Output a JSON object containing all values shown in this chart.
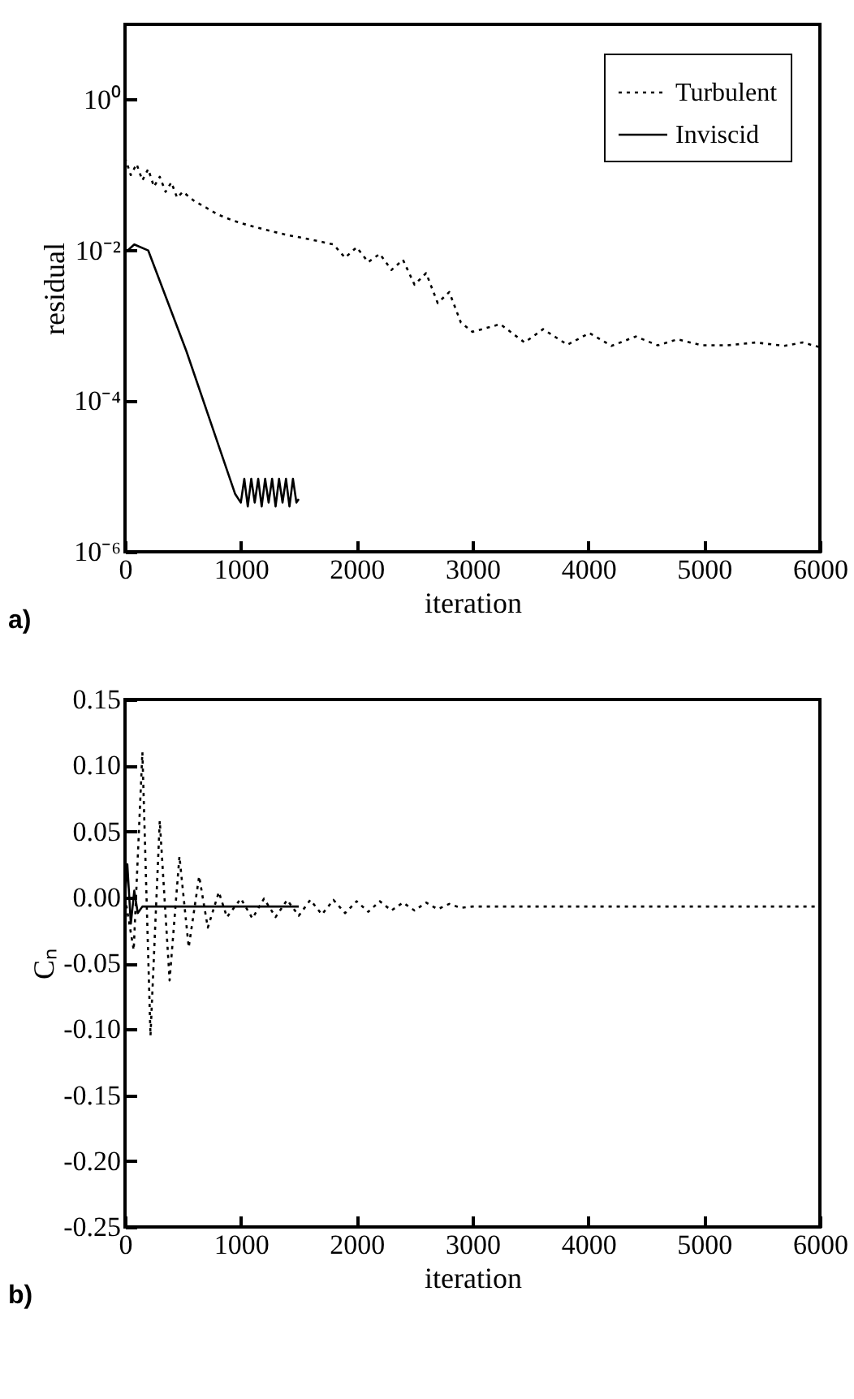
{
  "chart_data": [
    {
      "type": "line",
      "xlabel": "iteration",
      "ylabel": "residual",
      "log": "y",
      "xlim": [
        0,
        6000
      ],
      "xticks": [
        0,
        1000,
        2000,
        3000,
        4000,
        5000,
        6000
      ],
      "ylim": [
        1e-06,
        10
      ],
      "yticks": [
        {
          "value": 1,
          "label": "10⁰"
        },
        {
          "value": 0.01,
          "label": "10⁻²"
        },
        {
          "value": 0.0001,
          "label": "10⁻⁴"
        },
        {
          "value": 1e-06,
          "label": "10⁻⁶"
        }
      ],
      "grid": false,
      "legend": "top right",
      "marker": "none",
      "annotations": [
        "a)"
      ],
      "series": [
        {
          "name": "Turbulent",
          "color": "#000000",
          "line_style": "dotted",
          "x": [
            0,
            50,
            100,
            150,
            200,
            250,
            300,
            350,
            400,
            450,
            500,
            600,
            700,
            800,
            900,
            1000,
            1200,
            1400,
            1600,
            1800,
            1900,
            2000,
            2100,
            2200,
            2300,
            2400,
            2500,
            2600,
            2700,
            2800,
            2900,
            3000,
            3240,
            3450,
            3610,
            3820,
            4010,
            4200,
            4410,
            4600,
            4770,
            4980,
            5200,
            5450,
            5690,
            5850,
            6000
          ],
          "values": [
            0.17,
            0.1,
            0.14,
            0.085,
            0.12,
            0.07,
            0.095,
            0.06,
            0.08,
            0.05,
            0.06,
            0.045,
            0.037,
            0.03,
            0.026,
            0.023,
            0.019,
            0.016,
            0.014,
            0.012,
            0.008,
            0.011,
            0.007,
            0.009,
            0.0055,
            0.0075,
            0.0035,
            0.005,
            0.002,
            0.0028,
            0.0011,
            0.00083,
            0.00105,
            0.0006,
            0.0009,
            0.00056,
            0.0008,
            0.00054,
            0.00072,
            0.00055,
            0.00066,
            0.00055,
            0.00055,
            0.0006,
            0.00054,
            0.0006,
            0.00052
          ]
        },
        {
          "name": "Inviscid",
          "color": "#000000",
          "line_style": "solid",
          "x": [
            0,
            80,
            200,
            530,
            950,
            1000,
            1030,
            1060,
            1090,
            1120,
            1150,
            1180,
            1210,
            1240,
            1270,
            1300,
            1330,
            1360,
            1390,
            1420,
            1450,
            1480,
            1500
          ],
          "values": [
            0.0093,
            0.012,
            0.01,
            0.00046,
            5.9e-06,
            4.5e-06,
            9.3e-06,
            4e-06,
            9.3e-06,
            4.5e-06,
            9.3e-06,
            4e-06,
            9.3e-06,
            4.5e-06,
            9.3e-06,
            4e-06,
            9.3e-06,
            4.5e-06,
            9.3e-06,
            4e-06,
            9.3e-06,
            4.5e-06,
            5e-06
          ]
        }
      ]
    },
    {
      "type": "line",
      "xlabel": "iteration",
      "ylabel": "Cₙ",
      "xlim": [
        0,
        6000
      ],
      "xticks": [
        0,
        1000,
        2000,
        3000,
        4000,
        5000,
        6000
      ],
      "ylim": [
        -0.25,
        0.15
      ],
      "yticks": [
        {
          "value": 0.15,
          "label": "0.15"
        },
        {
          "value": 0.1,
          "label": "0.10"
        },
        {
          "value": 0.05,
          "label": "0.05"
        },
        {
          "value": 0,
          "label": "0.00"
        },
        {
          "value": -0.05,
          "label": "-0.05"
        },
        {
          "value": -0.1,
          "label": "-0.10"
        },
        {
          "value": -0.15,
          "label": "-0.15"
        },
        {
          "value": -0.2,
          "label": "-0.20"
        },
        {
          "value": -0.25,
          "label": "-0.25"
        }
      ],
      "grid": false,
      "legend": "top right",
      "marker": "none",
      "annotations": [
        "b)"
      ],
      "series": [
        {
          "name": "Turbulent",
          "color": "#000000",
          "line_style": "dotted",
          "x": [
            0,
            75,
            150,
            220,
            300,
            385,
            470,
            550,
            640,
            715,
            810,
            880,
            1000,
            1100,
            1200,
            1300,
            1400,
            1500,
            1600,
            1700,
            1800,
            1900,
            2000,
            2100,
            2200,
            2300,
            2400,
            2500,
            2600,
            2700,
            2800,
            2900,
            3000,
            6000
          ],
          "values": [
            0,
            -0.04,
            0.11,
            -0.105,
            0.058,
            -0.063,
            0.031,
            -0.038,
            0.016,
            -0.023,
            0.004,
            -0.015,
            -0.001,
            -0.016,
            -0.001,
            -0.015,
            -0.002,
            -0.014,
            -0.002,
            -0.013,
            -0.002,
            -0.012,
            -0.003,
            -0.011,
            -0.003,
            -0.01,
            -0.004,
            -0.01,
            -0.004,
            -0.009,
            -0.005,
            -0.008,
            -0.007,
            -0.007
          ]
        },
        {
          "name": "Inviscid",
          "color": "#000000",
          "line_style": "solid",
          "x": [
            0,
            20,
            50,
            80,
            110,
            150,
            1500
          ],
          "values": [
            0,
            0.025,
            -0.02,
            0.005,
            -0.012,
            -0.007,
            -0.007
          ]
        }
      ]
    }
  ]
}
